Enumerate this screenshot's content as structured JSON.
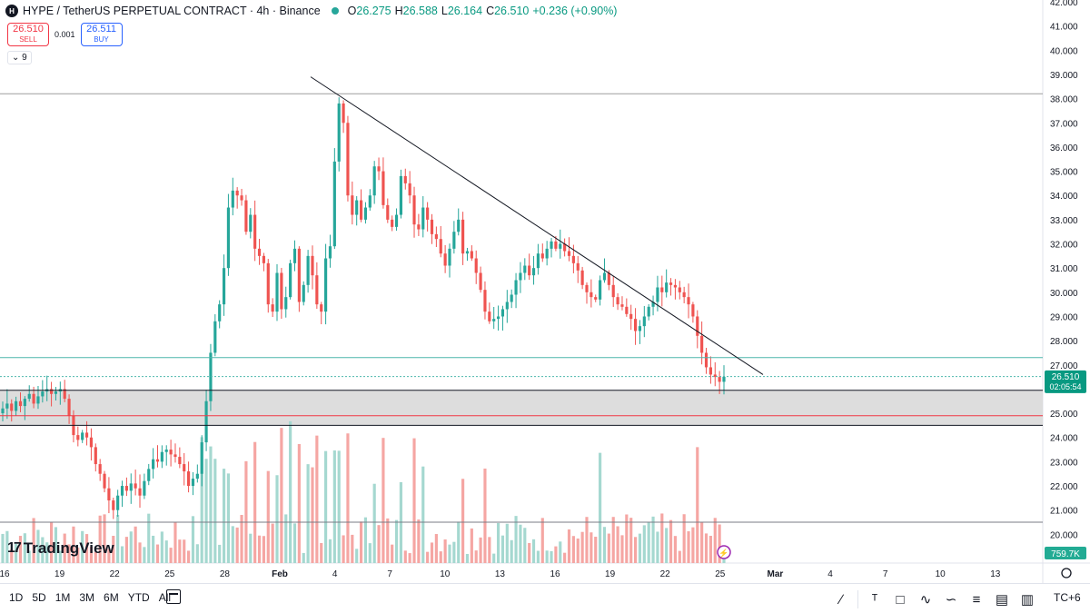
{
  "header": {
    "symbol_icon": "H",
    "title": "HYPE / TetherUS PERPETUAL CONTRACT · 4h · Binance",
    "o_label": "O",
    "o_value": "26.275",
    "h_label": "H",
    "h_value": "26.588",
    "l_label": "L",
    "l_value": "26.164",
    "c_label": "C",
    "c_value": "26.510",
    "change": "+0.236 (+0.90%)",
    "collapse_label": "9"
  },
  "trade": {
    "sell_price": "26.510",
    "sell_label": "SELL",
    "spread": "0.001",
    "buy_price": "26.511",
    "buy_label": "BUY"
  },
  "logo": {
    "text": "TradingView",
    "mark": "17"
  },
  "ranges": [
    "1D",
    "5D",
    "1M",
    "3M",
    "6M",
    "YTD",
    "All"
  ],
  "timezone": "TC+6",
  "tools": [
    "trend-line-icon",
    "text-icon",
    "rectangle-icon",
    "path-icon",
    "brush-icon",
    "fib-icon",
    "long-position-icon",
    "short-position-icon"
  ],
  "colors": {
    "up": "#26a69a",
    "down": "#ef5350",
    "up_vol": "#a5d8d0",
    "down_vol": "#f5a6a3",
    "accent": "#089981"
  },
  "chart_data": {
    "type": "candlestick",
    "symbol": "HYPE/USDT",
    "interval": "4h",
    "ylim": [
      19.0,
      42.0
    ],
    "y_ticks": [
      "20.000",
      "21.000",
      "22.000",
      "23.000",
      "24.000",
      "25.000",
      "26.000",
      "27.000",
      "28.000",
      "29.000",
      "30.000",
      "31.000",
      "32.000",
      "33.000",
      "34.000",
      "35.000",
      "36.000",
      "37.000",
      "38.000",
      "39.000",
      "40.000",
      "41.000",
      "42.000"
    ],
    "x_ticks": [
      "16",
      "19",
      "22",
      "25",
      "28",
      "Feb",
      "4",
      "7",
      "10",
      "13",
      "16",
      "19",
      "22",
      "25",
      "Mar",
      "4",
      "7",
      "10",
      "13"
    ],
    "last_price": "26.510",
    "countdown": "02:05:54",
    "volume_label": "759.7K",
    "horizontal_levels": [
      38.2,
      27.3,
      26.52,
      25.95,
      24.9,
      24.5,
      20.5
    ],
    "support_zone": [
      24.5,
      25.95
    ],
    "trendline": {
      "from": [
        38.9,
        "Feb 3"
      ],
      "to": [
        26.6,
        "Feb 24"
      ]
    },
    "closes": [
      25.2,
      25.4,
      25.1,
      25.5,
      25.3,
      25.6,
      25.8,
      25.4,
      25.7,
      25.9,
      26.0,
      25.8,
      25.9,
      26.0,
      25.6,
      24.9,
      24.1,
      23.9,
      24.2,
      24.0,
      23.6,
      22.9,
      22.5,
      21.9,
      21.4,
      21.0,
      21.6,
      22.0,
      21.8,
      22.1,
      21.9,
      21.6,
      22.2,
      22.7,
      23.1,
      23.0,
      23.4,
      23.5,
      23.3,
      23.2,
      22.9,
      22.6,
      22.0,
      22.3,
      22.5,
      23.8,
      25.5,
      27.5,
      28.8,
      29.5,
      31.0,
      33.5,
      34.2,
      34.0,
      33.8,
      32.5,
      33.2,
      31.8,
      31.5,
      31.2,
      29.5,
      29.2,
      30.8,
      29.3,
      29.8,
      31.2,
      31.8,
      29.6,
      30.3,
      31.5,
      30.7,
      29.5,
      29.2,
      31.4,
      31.9,
      35.4,
      37.8,
      37.0,
      34.0,
      33.2,
      33.8,
      33.0,
      33.5,
      34.0,
      35.2,
      35.0,
      33.6,
      33.0,
      32.7,
      33.2,
      34.8,
      34.5,
      34.0,
      32.8,
      32.6,
      33.5,
      33.0,
      32.4,
      32.2,
      31.6,
      31.1,
      31.8,
      32.5,
      33.0,
      31.6,
      31.7,
      31.4,
      30.8,
      30.1,
      29.2,
      28.8,
      28.9,
      29.0,
      29.3,
      29.6,
      29.9,
      30.5,
      30.8,
      31.1,
      30.7,
      31.0,
      31.6,
      31.4,
      31.8,
      32.1,
      31.8,
      32.0,
      31.7,
      31.5,
      31.2,
      30.9,
      30.3,
      30.0,
      29.8,
      29.7,
      30.5,
      30.8,
      30.3,
      29.8,
      29.5,
      29.4,
      29.1,
      28.9,
      28.4,
      28.6,
      29.0,
      29.4,
      29.6,
      30.2,
      30.0,
      30.4,
      30.3,
      30.2,
      30.0,
      29.8,
      29.5,
      29.0,
      28.2,
      27.5,
      26.9,
      26.6,
      26.5,
      26.3,
      26.51
    ]
  }
}
